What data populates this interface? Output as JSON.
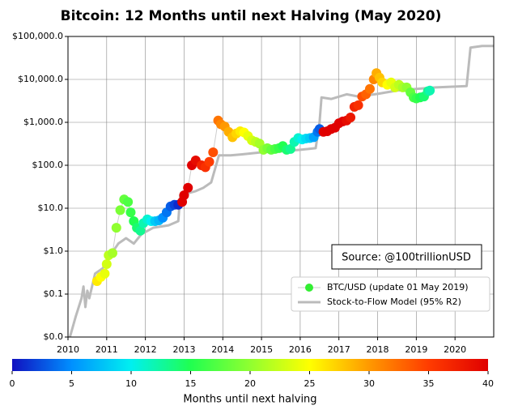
{
  "chart_data": {
    "type": "scatter",
    "title": "Bitcoin: 12 Months until next Halving (May 2020)",
    "source_note": "Source: @100trillionUSD",
    "y_scale": "log",
    "grid": true,
    "legend": "lower right",
    "xlim": [
      2010,
      2021
    ],
    "xticks": [
      2010,
      2011,
      2012,
      2013,
      2014,
      2015,
      2016,
      2017,
      2018,
      2019,
      2020
    ],
    "ylim": [
      0.01,
      100000
    ],
    "yticks": [
      {
        "value": 0.01,
        "label": "$0.0"
      },
      {
        "value": 0.1,
        "label": "$0.1"
      },
      {
        "value": 1,
        "label": "$1.0"
      },
      {
        "value": 10,
        "label": "$10.0"
      },
      {
        "value": 100,
        "label": "$100.0"
      },
      {
        "value": 1000,
        "label": "$1,000.0"
      },
      {
        "value": 10000,
        "label": "$10,000.0"
      },
      {
        "value": 100000,
        "label": "$100,000.0"
      }
    ],
    "series": [
      {
        "name": "BTC/USD (update 01 May 2019)",
        "type": "scatter",
        "color": "#33ee33",
        "line_color": "#cccccc",
        "x": [
          2010.75,
          2010.85,
          2010.95,
          2011.0,
          2011.05,
          2011.15,
          2011.25,
          2011.35,
          2011.45,
          2011.55,
          2011.62,
          2011.7,
          2011.78,
          2011.87,
          2011.95,
          2012.05,
          2012.15,
          2012.25,
          2012.35,
          2012.45,
          2012.55,
          2012.65,
          2012.75,
          2012.85,
          2012.95,
          2013.0,
          2013.1,
          2013.2,
          2013.3,
          2013.45,
          2013.55,
          2013.65,
          2013.75,
          2013.88,
          2013.95,
          2014.05,
          2014.15,
          2014.25,
          2014.35,
          2014.45,
          2014.55,
          2014.65,
          2014.75,
          2014.85,
          2014.95,
          2015.05,
          2015.15,
          2015.25,
          2015.35,
          2015.45,
          2015.55,
          2015.65,
          2015.75,
          2015.85,
          2015.95,
          2016.05,
          2016.15,
          2016.25,
          2016.35,
          2016.45,
          2016.5,
          2016.6,
          2016.7,
          2016.8,
          2016.9,
          2017.0,
          2017.1,
          2017.2,
          2017.3,
          2017.4,
          2017.5,
          2017.6,
          2017.7,
          2017.8,
          2017.9,
          2017.97,
          2018.05,
          2018.12,
          2018.25,
          2018.35,
          2018.45,
          2018.55,
          2018.65,
          2018.75,
          2018.85,
          2018.93,
          2019.0,
          2019.1,
          2019.2,
          2019.3,
          2019.35
        ],
        "values": [
          0.2,
          0.25,
          0.3,
          0.5,
          0.8,
          0.9,
          3.5,
          9,
          16,
          14,
          8,
          5,
          3.5,
          3,
          4.5,
          5.5,
          5,
          5,
          5.2,
          6,
          8,
          11,
          12,
          12,
          14,
          20,
          30,
          100,
          130,
          100,
          90,
          120,
          200,
          1100,
          900,
          800,
          600,
          450,
          550,
          620,
          580,
          480,
          380,
          350,
          320,
          230,
          250,
          230,
          240,
          250,
          280,
          230,
          240,
          350,
          430,
          400,
          420,
          430,
          450,
          600,
          700,
          600,
          620,
          700,
          750,
          950,
          1050,
          1100,
          1300,
          2300,
          2500,
          4000,
          4500,
          6000,
          10000,
          14000,
          11000,
          8500,
          7500,
          8500,
          6500,
          7500,
          6500,
          6500,
          5000,
          3800,
          3600,
          3800,
          4000,
          5300,
          5500
        ],
        "c": [
          26,
          25,
          24,
          23,
          22,
          21,
          20,
          19,
          18,
          17,
          16,
          15,
          14,
          13,
          12,
          11,
          10,
          8,
          7,
          5,
          4,
          3,
          2,
          1,
          42,
          42,
          41,
          40,
          39,
          37,
          36,
          35,
          34,
          32,
          31,
          30,
          29,
          28,
          27,
          26,
          25,
          24,
          23,
          22,
          21,
          20,
          19,
          18,
          17,
          16,
          15,
          14,
          13,
          12,
          11,
          10,
          9,
          8,
          6,
          4,
          3,
          46,
          45,
          44,
          43,
          41,
          40,
          39,
          38,
          37,
          36,
          34,
          33,
          32,
          31,
          29,
          28,
          27,
          25,
          24,
          23,
          22,
          21,
          20,
          18,
          17,
          16,
          15,
          14,
          13,
          12
        ]
      },
      {
        "name": "Stock-to-Flow Model (95% R2)",
        "type": "line",
        "color": "#bbbbbb",
        "x": [
          2010.05,
          2010.2,
          2010.35,
          2010.4,
          2010.45,
          2010.5,
          2010.55,
          2010.7,
          2010.9,
          2011.0,
          2011.3,
          2011.5,
          2011.7,
          2011.9,
          2012.2,
          2012.6,
          2012.85,
          2012.9,
          2013.3,
          2013.5,
          2013.7,
          2013.9,
          2014.2,
          2014.5,
          2015.0,
          2015.5,
          2016.0,
          2016.4,
          2016.5,
          2016.55,
          2016.8,
          2017.2,
          2017.5,
          2018.0,
          2018.5,
          2019.0,
          2019.5,
          2020.3,
          2020.4,
          2020.7,
          2021.0
        ],
        "values": [
          0.01,
          0.03,
          0.08,
          0.15,
          0.05,
          0.12,
          0.08,
          0.3,
          0.4,
          0.6,
          1.5,
          2,
          1.5,
          2.5,
          3.5,
          4,
          5,
          20,
          25,
          30,
          40,
          170,
          170,
          180,
          200,
          210,
          230,
          250,
          1000,
          3800,
          3500,
          4500,
          4000,
          4600,
          5500,
          6000,
          6500,
          7000,
          55000,
          60000,
          60000
        ]
      }
    ],
    "colorbar": {
      "label": "Months until next halving",
      "lim": [
        0,
        40
      ],
      "ticks": [
        0,
        5,
        10,
        15,
        20,
        25,
        30,
        35,
        40
      ],
      "colormap": [
        "#1010c0",
        "#0090ff",
        "#00f0f0",
        "#20ff50",
        "#90ff30",
        "#ffff00",
        "#ff9900",
        "#ff3c00",
        "#e00000"
      ]
    }
  }
}
